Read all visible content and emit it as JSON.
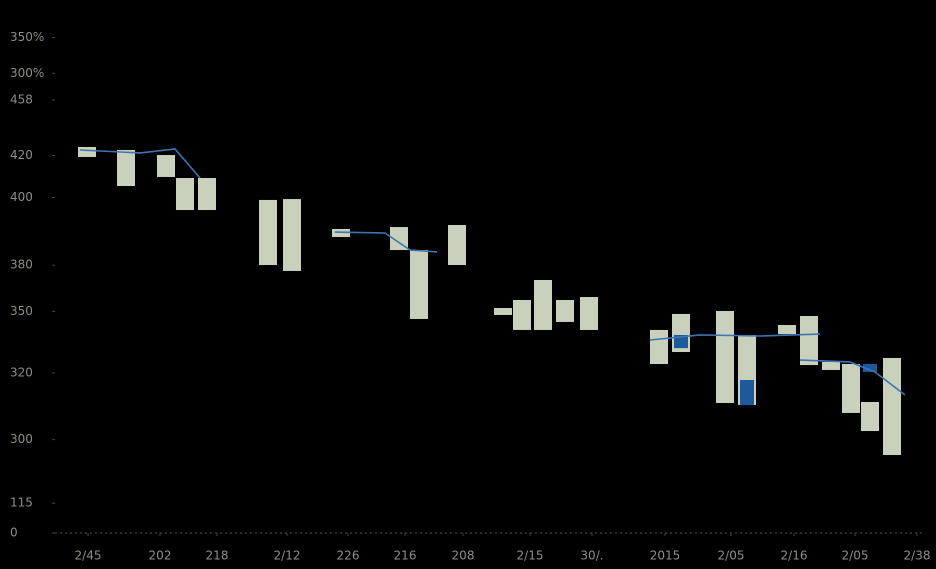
{
  "chart_data": {
    "type": "floating-bar",
    "xlim": [
      55,
      925
    ],
    "ylim": [
      0,
      500
    ],
    "xticks": [
      {
        "value": 88,
        "label": "2/45"
      },
      {
        "value": 160,
        "label": "202"
      },
      {
        "value": 217,
        "label": "218"
      },
      {
        "value": 287,
        "label": "2/12"
      },
      {
        "value": 348,
        "label": "226"
      },
      {
        "value": 405,
        "label": "216"
      },
      {
        "value": 463,
        "label": "208"
      },
      {
        "value": 530,
        "label": "2/15"
      },
      {
        "value": 592,
        "label": "30/."
      },
      {
        "value": 665,
        "label": "2015"
      },
      {
        "value": 731,
        "label": "2/05"
      },
      {
        "value": 794,
        "label": "2/16"
      },
      {
        "value": 855,
        "label": "2/05"
      },
      {
        "value": 917,
        "label": "2/38"
      }
    ],
    "yticks": [
      {
        "value": 483,
        "label": "350%"
      },
      {
        "value": 448,
        "label": "300%"
      },
      {
        "value": 422,
        "label": "458"
      },
      {
        "value": 368,
        "label": "420"
      },
      {
        "value": 327,
        "label": "400"
      },
      {
        "value": 261,
        "label": "380"
      },
      {
        "value": 216,
        "label": "350"
      },
      {
        "value": 156,
        "label": "320"
      },
      {
        "value": 91,
        "label": "300"
      },
      {
        "value": 29,
        "label": "115"
      },
      0
    ],
    "bars": {
      "color": "#c9d1bd",
      "x": [
        87,
        126,
        166,
        185,
        207,
        268,
        292,
        341,
        399,
        419,
        457,
        503,
        522,
        543,
        565,
        589,
        659,
        681,
        725,
        747,
        787,
        809,
        831,
        851,
        870,
        892
      ],
      "low": [
        366.5,
        338.2,
        347.0,
        314.8,
        314.8,
        261.2,
        255.4,
        288.5,
        275.8,
        208.6,
        261.2,
        212.5,
        197.9,
        197.9,
        205.7,
        197.9,
        164.7,
        176.4,
        126.7,
        124.8,
        193.9,
        163.7,
        158.9,
        117.0,
        99.4,
        76.0
      ],
      "high": [
        376.2,
        373.3,
        368.4,
        346.0,
        346.0,
        324.6,
        325.5,
        296.3,
        298.2,
        275.8,
        300.2,
        219.3,
        227.1,
        246.6,
        227.1,
        230.0,
        197.9,
        213.5,
        216.4,
        193.0,
        202.7,
        211.5,
        166.7,
        164.7,
        127.7,
        170.6
      ]
    },
    "highlight": {
      "color": "#1d5a9c",
      "x": [
        747,
        681,
        870
      ],
      "low": [
        124.8,
        180.2,
        157.0
      ],
      "high": [
        149.1,
        193.0,
        164.7
      ]
    },
    "line": {
      "color": "#3f74b0",
      "x": [
        80,
        140,
        175,
        200,
        null,
        335,
        385,
        410,
        437,
        null,
        650,
        700,
        760,
        820,
        null,
        800,
        850,
        875,
        905
      ],
      "values": [
        373.3,
        370.4,
        374.3,
        346.0,
        null,
        293.3,
        292.4,
        275.8,
        273.9,
        null,
        188.1,
        193.0,
        192.0,
        193.9,
        null,
        168.6,
        166.7,
        156.9,
        134.5
      ]
    }
  }
}
